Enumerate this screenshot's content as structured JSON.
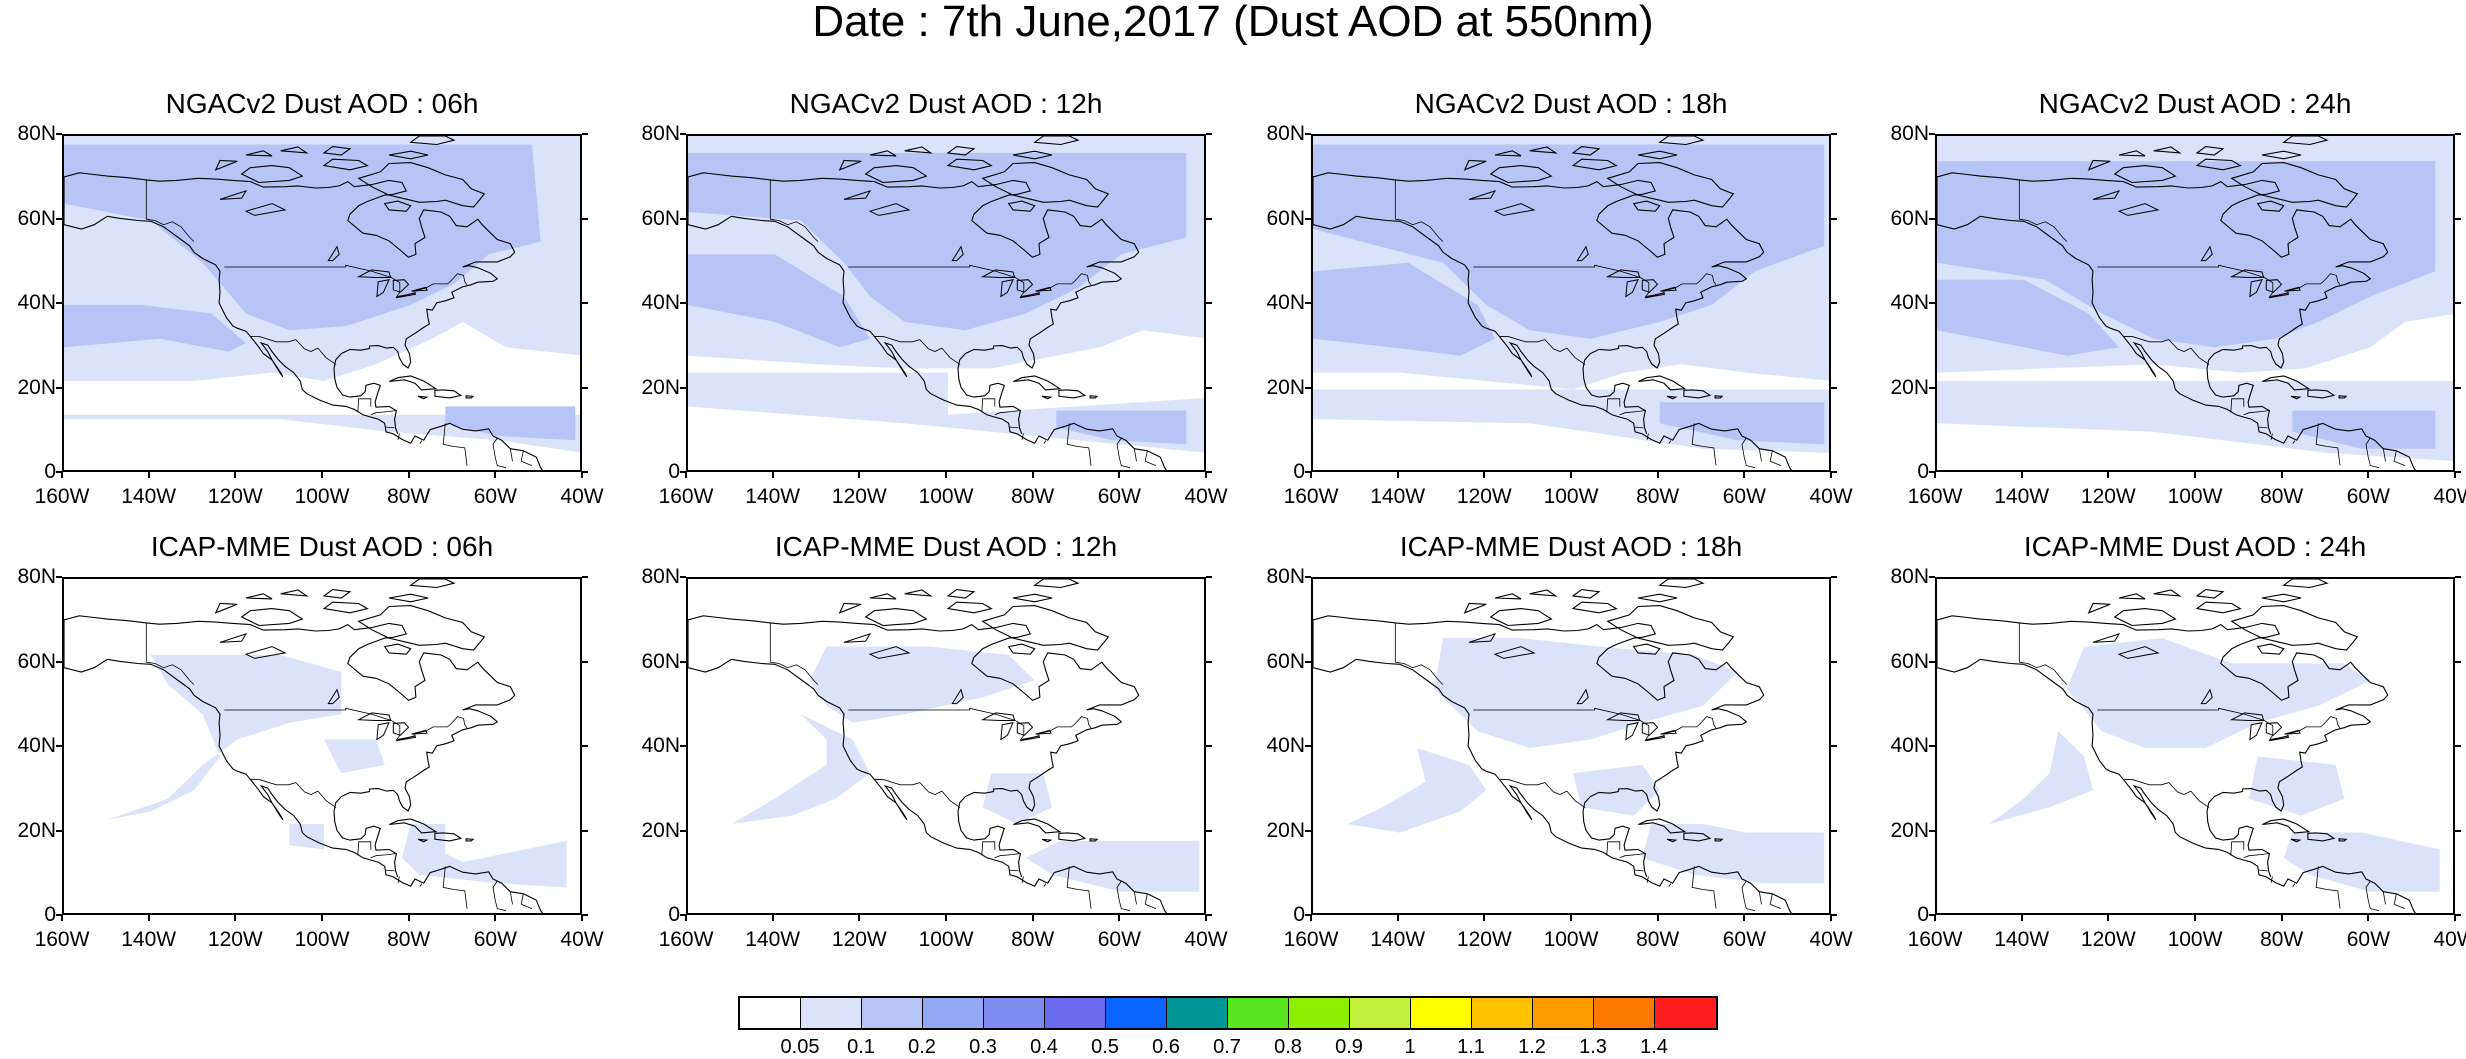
{
  "title": "Date : 7th June,2017 (Dust AOD at 550nm)",
  "colors": {
    "level_1": "#dbe3fb",
    "level_2": "#b7c5f6",
    "land_outline": "#000000",
    "background": "#ffffff"
  },
  "panels": [
    {
      "title": "NGACv2 Dust AOD : 06h",
      "model": "NGACv2",
      "hour": "06h",
      "coverage": "widespread",
      "mean_level": 0.15
    },
    {
      "title": "NGACv2 Dust AOD : 12h",
      "model": "NGACv2",
      "hour": "12h",
      "coverage": "widespread",
      "mean_level": 0.15
    },
    {
      "title": "NGACv2 Dust AOD : 18h",
      "model": "NGACv2",
      "hour": "18h",
      "coverage": "widespread",
      "mean_level": 0.15
    },
    {
      "title": "NGACv2 Dust AOD : 24h",
      "model": "NGACv2",
      "hour": "24h",
      "coverage": "widespread",
      "mean_level": 0.15
    },
    {
      "title": "ICAP-MME Dust AOD : 06h",
      "model": "ICAP-MME",
      "hour": "06h",
      "coverage": "patchy",
      "mean_level": 0.08
    },
    {
      "title": "ICAP-MME Dust AOD : 12h",
      "model": "ICAP-MME",
      "hour": "12h",
      "coverage": "patchy",
      "mean_level": 0.08
    },
    {
      "title": "ICAP-MME Dust AOD : 18h",
      "model": "ICAP-MME",
      "hour": "18h",
      "coverage": "patchy",
      "mean_level": 0.08
    },
    {
      "title": "ICAP-MME Dust AOD : 24h",
      "model": "ICAP-MME",
      "hour": "24h",
      "coverage": "patchy",
      "mean_level": 0.08
    }
  ],
  "axes": {
    "lat_labels": [
      "80N",
      "60N",
      "40N",
      "20N",
      "0"
    ],
    "lon_labels": [
      "160W",
      "140W",
      "120W",
      "100W",
      "80W",
      "60W",
      "40W"
    ],
    "lat_range": [
      0,
      80
    ],
    "lon_range": [
      -160,
      -40
    ]
  },
  "colorbar": {
    "labels": [
      "0.05",
      "0.1",
      "0.2",
      "0.3",
      "0.4",
      "0.5",
      "0.6",
      "0.7",
      "0.8",
      "0.9",
      "1",
      "1.1",
      "1.2",
      "1.3",
      "1.4"
    ],
    "colors": [
      "#ffffff",
      "#dbe3fb",
      "#b7c5f6",
      "#93a8f2",
      "#7f8cf0",
      "#6a6ced",
      "#0a64ff",
      "#009696",
      "#5ae61e",
      "#8cf000",
      "#c3f03c",
      "#ffff00",
      "#ffc000",
      "#ff9c00",
      "#ff7800",
      "#ff1e1e"
    ]
  }
}
